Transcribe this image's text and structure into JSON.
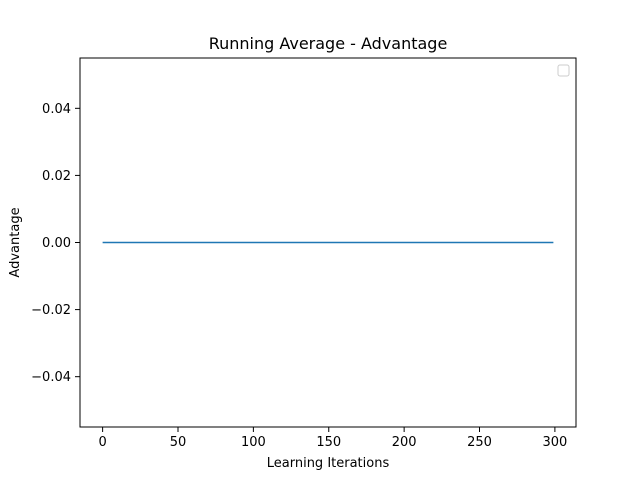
{
  "chart_data": {
    "type": "line",
    "title": "Running Average - Advantage",
    "xlabel": "Learning Iterations",
    "ylabel": "Advantage",
    "xlim": [
      -15,
      314
    ],
    "ylim": [
      -0.055,
      0.055
    ],
    "xticks": [
      0,
      50,
      100,
      150,
      200,
      250,
      300
    ],
    "xtick_labels": [
      "0",
      "50",
      "100",
      "150",
      "200",
      "250",
      "300"
    ],
    "yticks": [
      -0.04,
      -0.02,
      0.0,
      0.02,
      0.04
    ],
    "ytick_labels": [
      "−0.04",
      "−0.02",
      "0.00",
      "0.02",
      "0.04"
    ],
    "grid": false,
    "legend": {
      "location": "upper right",
      "entries": []
    },
    "series": [
      {
        "color": "#1f77b4",
        "x": [
          0,
          299
        ],
        "y": [
          0.0,
          0.0
        ]
      }
    ]
  }
}
